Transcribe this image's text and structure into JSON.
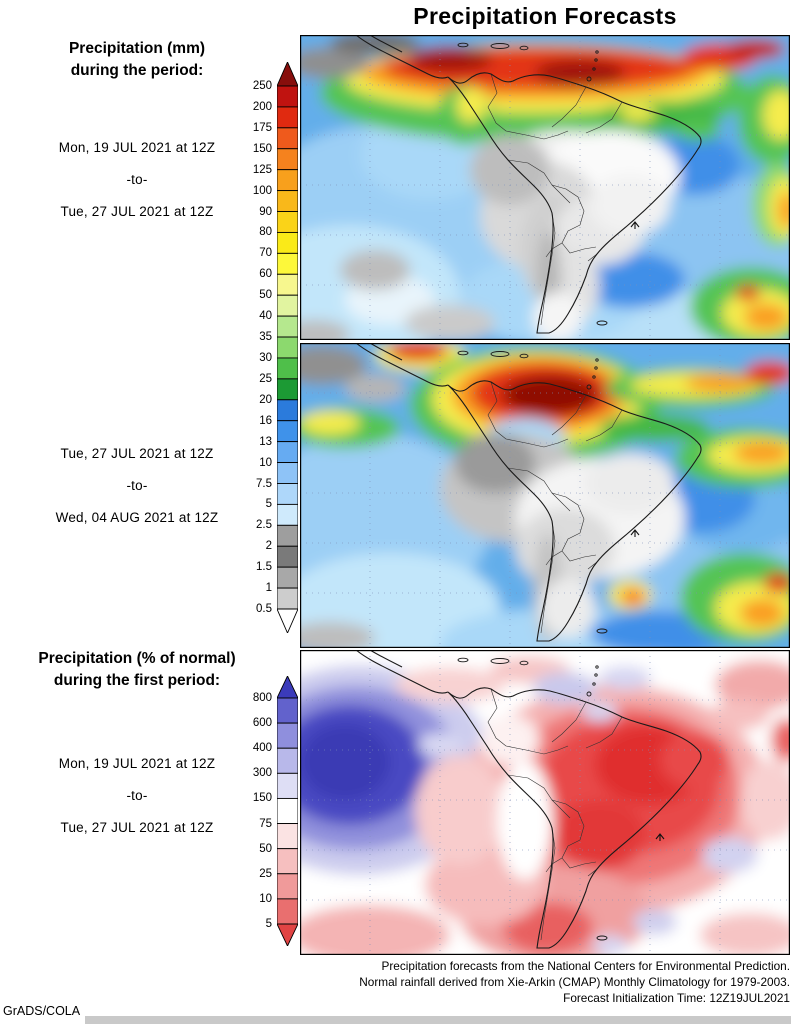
{
  "title": "Precipitation Forecasts",
  "left_panel": {
    "heading_mm_line1": "Precipitation (mm)",
    "heading_mm_line2": "during the period:",
    "period1": {
      "start": "Mon, 19 JUL 2021 at 12Z",
      "sep": "-to-",
      "end": "Tue, 27 JUL 2021 at 12Z"
    },
    "period2": {
      "start": "Tue, 27 JUL 2021 at 12Z",
      "sep": "-to-",
      "end": "Wed, 04 AUG 2021 at 12Z"
    },
    "heading_pct_line1": "Precipitation (% of normal)",
    "heading_pct_line2": "during the first period:",
    "period3": {
      "start": "Mon, 19 JUL 2021 at 12Z",
      "sep": "-to-",
      "end": "Tue, 27 JUL 2021 at 12Z"
    }
  },
  "colorbar_mm": {
    "unit": "mm",
    "ticks": [
      "250",
      "200",
      "175",
      "150",
      "125",
      "100",
      "90",
      "80",
      "70",
      "60",
      "50",
      "40",
      "35",
      "30",
      "25",
      "20",
      "16",
      "13",
      "10",
      "7.5",
      "5",
      "2.5",
      "2",
      "1.5",
      "1",
      "0.5"
    ],
    "colors": [
      "#870e0c",
      "#c01310",
      "#e02a10",
      "#ef5a1c",
      "#f5821e",
      "#f8a01c",
      "#f9b81a",
      "#fad318",
      "#faea18",
      "#fdf83a",
      "#f7f78e",
      "#e1f4a0",
      "#b5e88e",
      "#8cd96e",
      "#4fbf4a",
      "#1c9a34",
      "#2b7bdc",
      "#3f92ea",
      "#66abf2",
      "#8ec3f7",
      "#aed7fa",
      "#cfeafc",
      "#9e9e9e",
      "#7a7a7a",
      "#a8a8a8",
      "#cdcdcd",
      "#ffffff"
    ]
  },
  "colorbar_pct": {
    "unit": "% of normal",
    "ticks": [
      "800",
      "600",
      "400",
      "300",
      "150",
      "75",
      "50",
      "25",
      "10",
      "5"
    ],
    "colors": [
      "#3b3bba",
      "#6262cc",
      "#8f8fdd",
      "#b8b8ea",
      "#dedef5",
      "#ffffff",
      "#fbe3e3",
      "#f6bfbf",
      "#f09a9a",
      "#e96f6f",
      "#e14444"
    ]
  },
  "footer": {
    "line1": "Precipitation forecasts from the National Centers for Environmental Prediction.",
    "line2": "Normal rainfall derived from Xie-Arkin (CMAP) Monthly Climatology for 1979-2003.",
    "line3": "Forecast Initialization Time: 12Z19JUL2021"
  },
  "credit": "GrADS/COLA"
}
